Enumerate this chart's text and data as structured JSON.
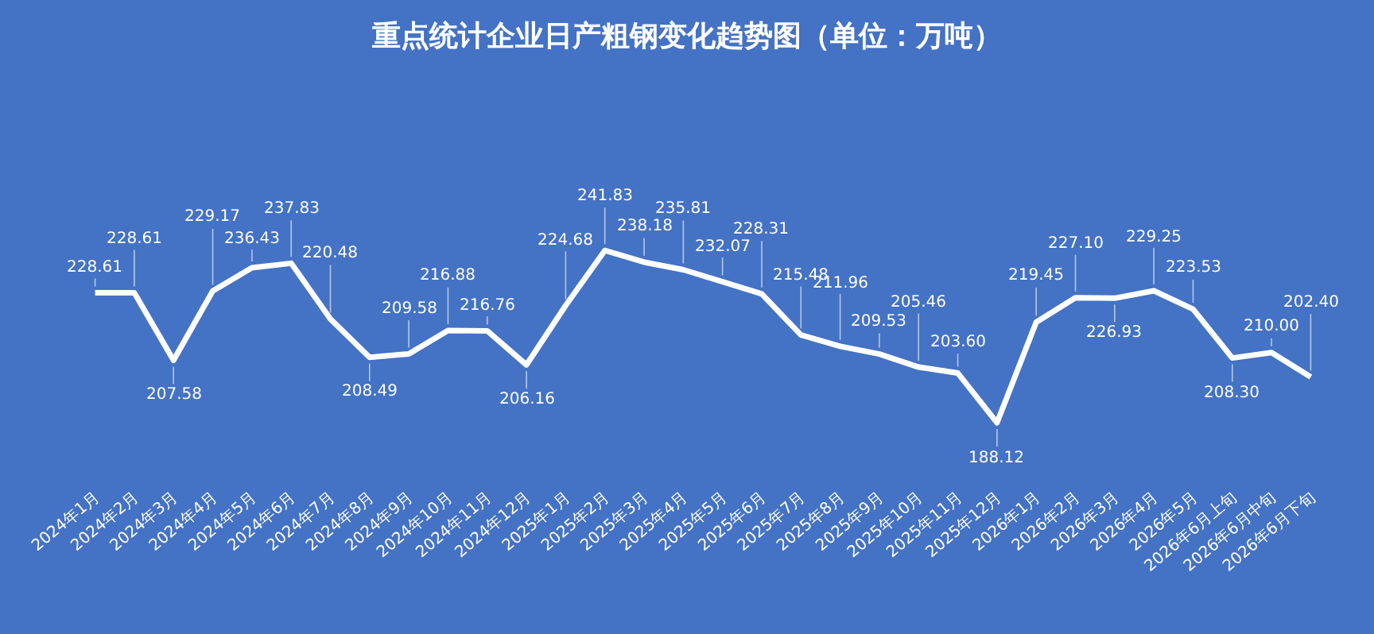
{
  "chart_data": {
    "type": "line",
    "title": "重点统计企业日产粗钢变化趋势图（单位：万吨）",
    "categories": [
      "2024年1月",
      "2024年2月",
      "2024年3月",
      "2024年4月",
      "2024年5月",
      "2024年6月",
      "2024年7月",
      "2024年8月",
      "2024年9月",
      "2024年10月",
      "2024年11月",
      "2024年12月",
      "2025年1月",
      "2025年2月",
      "2025年3月",
      "2025年4月",
      "2025年5月",
      "2025年6月",
      "2025年7月",
      "2025年8月",
      "2025年9月",
      "2025年10月",
      "2025年11月",
      "2025年12月",
      "2026年1月",
      "2026年2月",
      "2026年3月",
      "2026年4月",
      "2026年5月",
      "2026年6月上旬",
      "2026年6月中旬",
      "2026年6月下旬"
    ],
    "series": [
      {
        "color": "#ffffff",
        "values": [
          228.61,
          228.61,
          207.58,
          229.17,
          236.43,
          237.83,
          220.48,
          208.49,
          209.58,
          216.88,
          216.76,
          206.16,
          224.68,
          241.83,
          238.18,
          235.81,
          232.07,
          228.31,
          215.48,
          211.96,
          209.53,
          205.46,
          203.6,
          188.12,
          219.45,
          227.1,
          226.93,
          229.25,
          223.53,
          208.3,
          210.0,
          202.4
        ],
        "value_labels": [
          "228.61",
          "228.61",
          "207.58",
          "229.17",
          "236.43",
          "237.83",
          "220.48",
          "208.49",
          "209.58",
          "216.88",
          "216.76",
          "206.16",
          "224.68",
          "241.83",
          "238.18",
          "235.81",
          "232.07",
          "228.31",
          "215.48",
          "211.96",
          "209.53",
          "205.46",
          "203.60",
          "188.12",
          "219.45",
          "227.10",
          "226.93",
          "229.25",
          "223.53",
          "208.30",
          "210.00",
          "202.40"
        ]
      }
    ],
    "marker": "none",
    "line_style": "solid"
  }
}
